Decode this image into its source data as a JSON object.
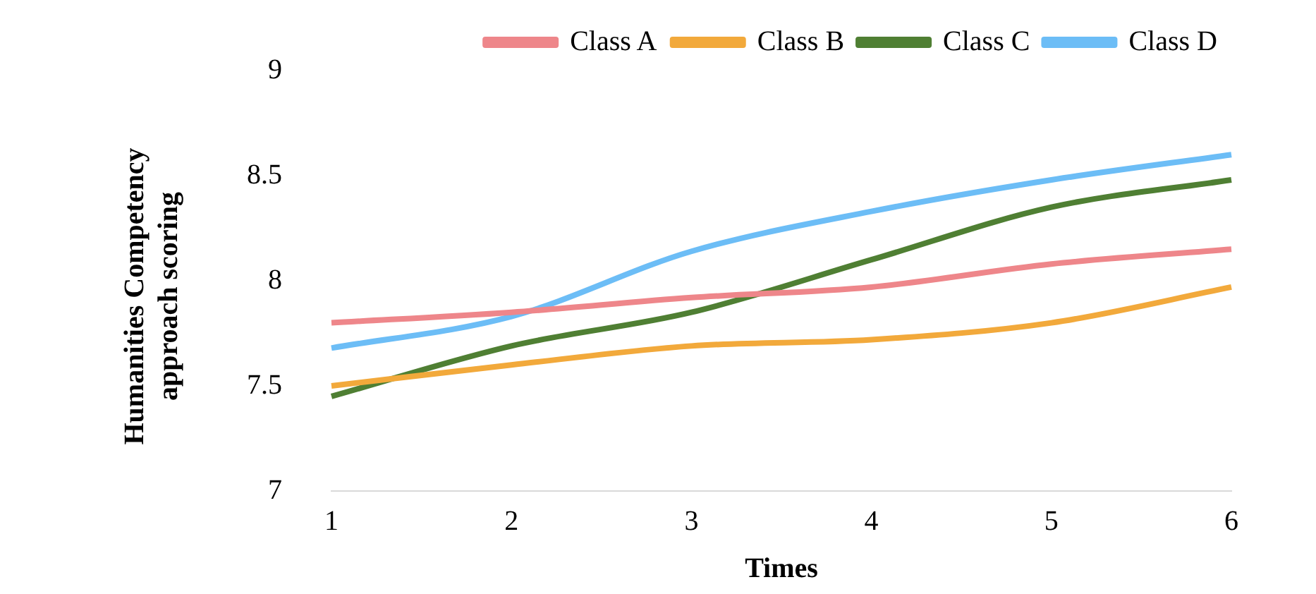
{
  "chart_data": {
    "type": "line",
    "xlabel": "Times",
    "ylabel": "Humanities Competency approach scoring",
    "categories": [
      "1",
      "2",
      "3",
      "4",
      "5",
      "6"
    ],
    "ylim": [
      7,
      9
    ],
    "yticks": [
      7,
      7.5,
      8,
      8.5,
      9
    ],
    "grid": false,
    "legend": "top",
    "marker": "none",
    "line_style": "solid",
    "series": [
      {
        "name": "Class A",
        "color": "#ee868a",
        "values": [
          7.8,
          7.85,
          7.92,
          7.97,
          8.08,
          8.15
        ]
      },
      {
        "name": "Class B",
        "color": "#f2a93b",
        "values": [
          7.5,
          7.6,
          7.69,
          7.72,
          7.8,
          7.97
        ]
      },
      {
        "name": "Class C",
        "color": "#4f7f33",
        "values": [
          7.45,
          7.69,
          7.85,
          8.1,
          8.35,
          8.48
        ]
      },
      {
        "name": "Class D",
        "color": "#6cbdf6",
        "values": [
          7.68,
          7.83,
          8.14,
          8.33,
          8.48,
          8.6
        ]
      }
    ]
  }
}
